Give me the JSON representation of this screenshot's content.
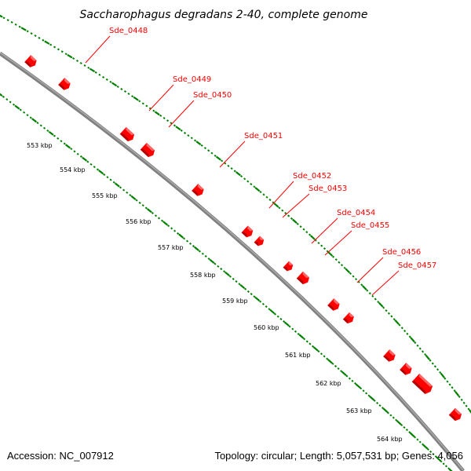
{
  "title": "Saccharophagus degradans 2-40, complete genome",
  "footer": {
    "accession": "Accession: NC_007912",
    "summary": "Topology: circular; Length: 5,057,531 bp; Genes: 4,056"
  },
  "colors": {
    "backbone": "#808080",
    "backbone_highlight": "#a9a9a9",
    "gene_fill": "#ff0000",
    "gene_dark": "#b30000",
    "gene_light": "#ff6666",
    "label": "#ff0000",
    "tick": "#008000"
  },
  "genes": [
    {
      "label": "Sde_0448"
    },
    {
      "label": "Sde_0449"
    },
    {
      "label": "Sde_0450"
    },
    {
      "label": "Sde_0451"
    },
    {
      "label": "Sde_0452"
    },
    {
      "label": "Sde_0453"
    },
    {
      "label": "Sde_0454"
    },
    {
      "label": "Sde_0455"
    },
    {
      "label": "Sde_0456"
    },
    {
      "label": "Sde_0457"
    }
  ],
  "scale": {
    "kbp_labels": [
      "553 kbp",
      "554 kbp",
      "555 kbp",
      "556 kbp",
      "557 kbp",
      "558 kbp",
      "559 kbp",
      "560 kbp",
      "561 kbp",
      "562 kbp",
      "563 kbp",
      "564 kbp"
    ]
  }
}
